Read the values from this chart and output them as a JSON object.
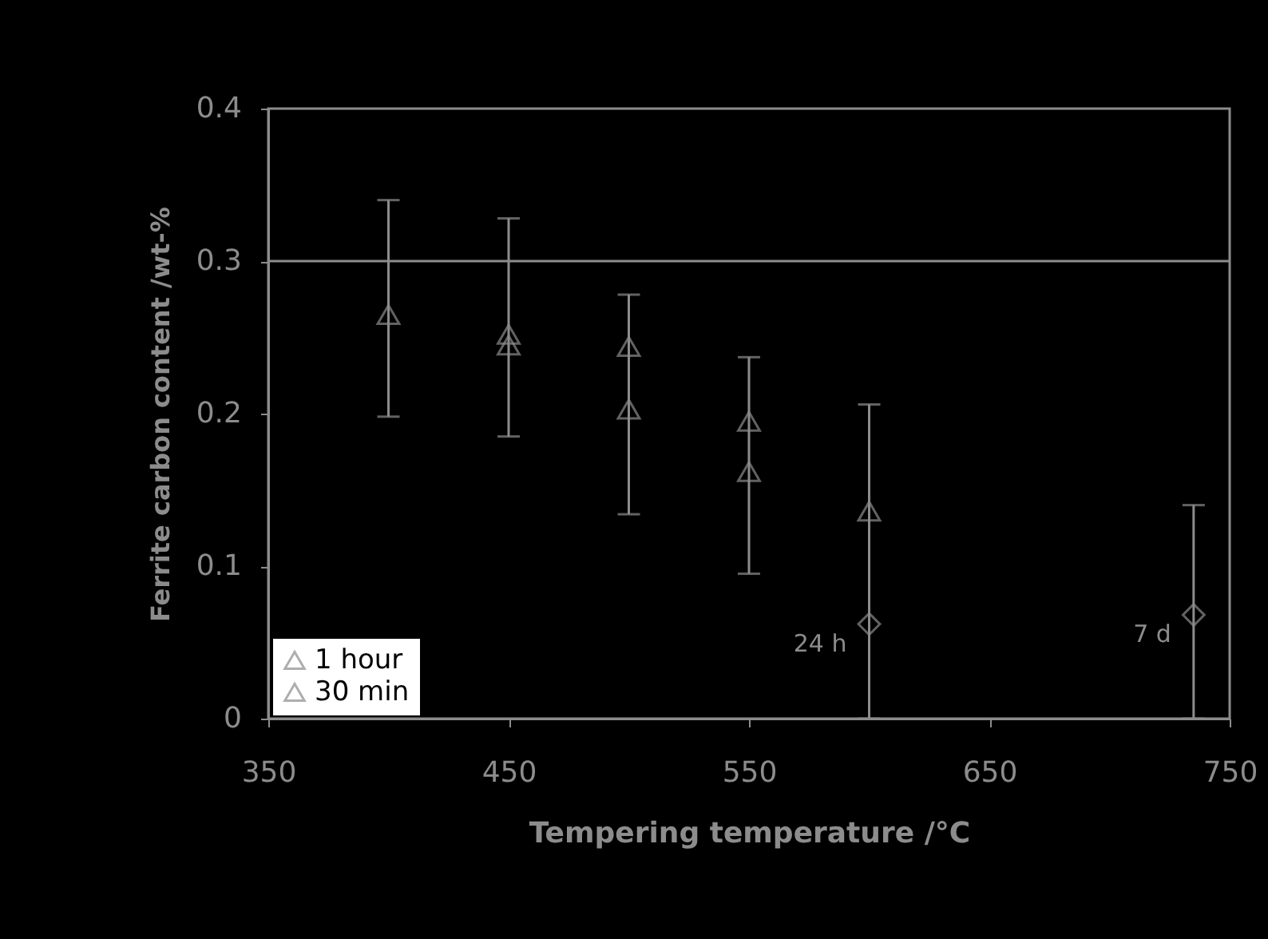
{
  "chart_data": {
    "type": "scatter",
    "xlabel": "Tempering temperature /°C",
    "ylabel": "Ferrite carbon content /wt-%",
    "xlim": [
      350,
      750
    ],
    "xticks": [
      350,
      450,
      550,
      650,
      750
    ],
    "ylim": [
      0,
      0.4
    ],
    "yticks": [
      0,
      0.1,
      0.2,
      0.3,
      0.4
    ],
    "grid": false,
    "legend": "bottom left",
    "marker": "triangle",
    "series": [
      {
        "name": "1 hour",
        "color": "#8c8c8c",
        "x": [
          400,
          450,
          500,
          550,
          600
        ],
        "values": [
          0.265,
          0.252,
          0.203,
          0.162,
          0.136
        ],
        "errors": [
          [
            0.198,
            0.34
          ],
          [
            0.185,
            0.328
          ],
          [
            0.134,
            0.278
          ],
          [
            0.095,
            0.237
          ],
          [
            0,
            0.206
          ]
        ]
      },
      {
        "name": "30 min",
        "color": "#8c8c8c",
        "x": [
          450,
          500,
          550
        ],
        "values": [
          0.245,
          0.244,
          0.195
        ]
      },
      {
        "color": "#8c8c8c",
        "marker": "diamond",
        "x": [
          600,
          735
        ],
        "values": [
          0.062,
          0.068
        ],
        "errors": [
          null,
          [
            0,
            0.14
          ]
        ]
      }
    ],
    "ref_lines": [
      {
        "axis": "y",
        "value": 0.3,
        "color": "#8c8c8c"
      }
    ],
    "annotations": [
      {
        "text": "24 h",
        "x": 600,
        "y": 0.062
      },
      {
        "text": "7 d",
        "x": 735,
        "y": 0.068
      }
    ]
  }
}
